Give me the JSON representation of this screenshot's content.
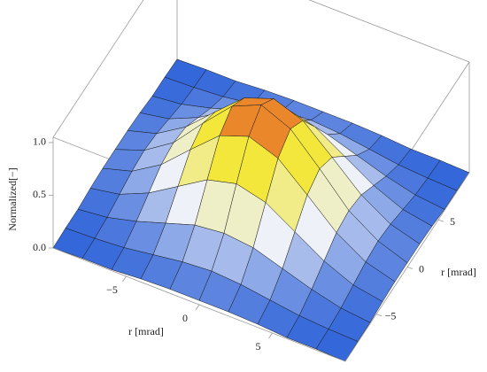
{
  "chart_data": {
    "type": "surface",
    "x_label": "r [mrad]",
    "y_label": "r [mrad]",
    "z_label": "Normalized[−]",
    "x": [
      -10,
      -8,
      -6,
      -4,
      -2,
      0,
      2,
      4,
      6,
      8,
      10
    ],
    "y": [
      -10,
      -8,
      -6,
      -4,
      -2,
      0,
      2,
      4,
      6,
      8,
      10
    ],
    "z": [
      [
        0.0,
        0.01,
        0.01,
        0.03,
        0.04,
        0.04,
        0.04,
        0.03,
        0.01,
        0.01,
        0.0
      ],
      [
        0.01,
        0.02,
        0.04,
        0.08,
        0.12,
        0.14,
        0.12,
        0.08,
        0.04,
        0.02,
        0.01
      ],
      [
        0.01,
        0.04,
        0.11,
        0.2,
        0.29,
        0.32,
        0.29,
        0.2,
        0.11,
        0.04,
        0.01
      ],
      [
        0.03,
        0.08,
        0.2,
        0.37,
        0.54,
        0.61,
        0.54,
        0.37,
        0.2,
        0.08,
        0.03
      ],
      [
        0.04,
        0.12,
        0.29,
        0.54,
        0.78,
        0.88,
        0.78,
        0.54,
        0.29,
        0.12,
        0.04
      ],
      [
        0.04,
        0.14,
        0.32,
        0.61,
        0.88,
        1.0,
        0.88,
        0.61,
        0.32,
        0.14,
        0.04
      ],
      [
        0.04,
        0.12,
        0.29,
        0.54,
        0.78,
        0.88,
        0.78,
        0.54,
        0.29,
        0.12,
        0.04
      ],
      [
        0.03,
        0.08,
        0.2,
        0.37,
        0.54,
        0.61,
        0.54,
        0.37,
        0.2,
        0.08,
        0.03
      ],
      [
        0.01,
        0.04,
        0.11,
        0.2,
        0.29,
        0.32,
        0.29,
        0.2,
        0.11,
        0.04,
        0.01
      ],
      [
        0.01,
        0.02,
        0.04,
        0.08,
        0.12,
        0.14,
        0.12,
        0.08,
        0.04,
        0.02,
        0.01
      ],
      [
        0.0,
        0.01,
        0.01,
        0.03,
        0.04,
        0.04,
        0.04,
        0.03,
        0.01,
        0.01,
        0.0
      ]
    ],
    "xlim": [
      -10,
      10
    ],
    "ylim": [
      -10,
      10
    ],
    "zlim": [
      0,
      1.05
    ],
    "xticks": [
      {
        "value": -5,
        "label": "−5"
      },
      0,
      5
    ],
    "yticks": [
      {
        "value": -5,
        "label": "−5"
      },
      0,
      5
    ],
    "zticks": [
      {
        "value": 0,
        "label": "0.0"
      },
      {
        "value": 0.5,
        "label": "0.5"
      },
      {
        "value": 1,
        "label": "1.0"
      }
    ],
    "colorscale": [
      "#2f63d8",
      "#eef1f7",
      "#f3e83c",
      "#e2311c"
    ],
    "mesh_color": "#1a1a1a"
  }
}
